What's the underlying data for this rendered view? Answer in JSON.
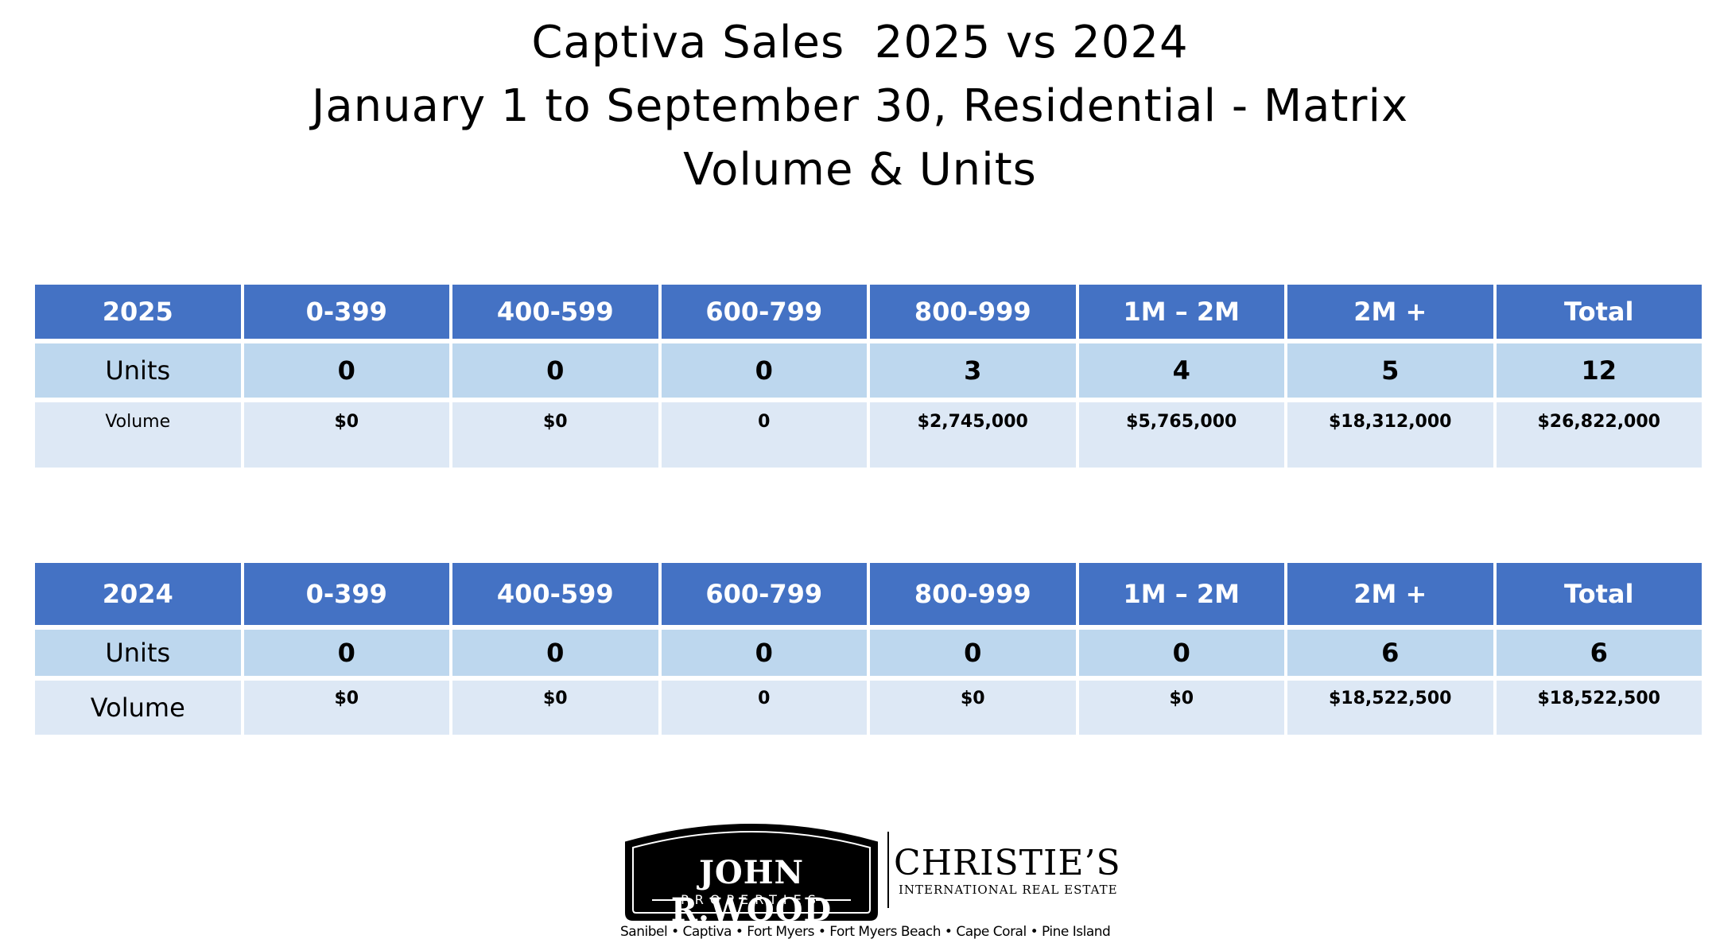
{
  "title": {
    "line1": "Captiva Sales  2025 vs 2024",
    "line2": "January 1 to September 30, Residential - Matrix",
    "line3": "Volume & Units"
  },
  "table_2025": {
    "headers": [
      "2025",
      "0-399",
      "400-599",
      "600-799",
      "800-999",
      "1M – 2M",
      "2M +",
      "Total"
    ],
    "units_label": "Units",
    "units": [
      "0",
      "0",
      "0",
      "3",
      "4",
      "5",
      "12"
    ],
    "volume_label": "Volume",
    "volume": [
      "$0",
      "$0",
      "0",
      "$2,745,000",
      "$5,765,000",
      "$18,312,000",
      "$26,822,000"
    ]
  },
  "table_2024": {
    "headers": [
      "2024",
      "0-399",
      "400-599",
      "600-799",
      "800-999",
      "1M – 2M",
      "2M +",
      "Total"
    ],
    "units_label": "Units",
    "units": [
      "0",
      "0",
      "0",
      "0",
      "0",
      "6",
      "6"
    ],
    "volume_label": "Volume",
    "volume": [
      "$0",
      "$0",
      "0",
      "$0",
      "$0",
      "$18,522,500",
      "$18,522,500"
    ]
  },
  "logo": {
    "jrw_name": "JOHN R.WOOD",
    "jrw_sub": "PROPERTIES",
    "christies_name": "CHRISTIE’S",
    "christies_sub": "INTERNATIONAL REAL ESTATE",
    "tagline": "Sanibel • Captiva • Fort Myers • Fort Myers Beach • Cape Coral • Pine Island"
  },
  "colors": {
    "header_bg": "#4472c4",
    "units_row_bg": "#bdd7ee",
    "volume_row_bg": "#dde8f5"
  }
}
